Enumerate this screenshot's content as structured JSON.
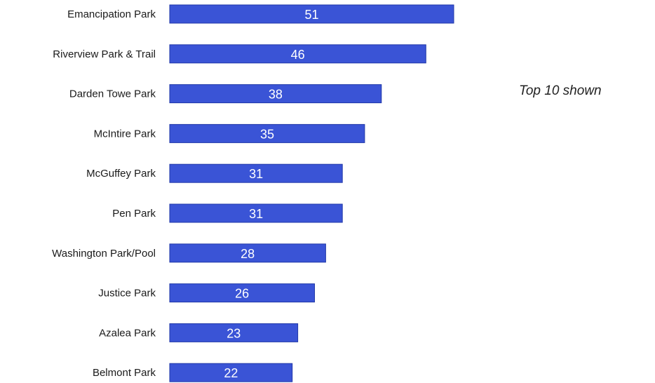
{
  "note": "Top 10 shown",
  "colors": {
    "bar": "#3a54d6",
    "bar_edge": "#2138a8",
    "label_text": "#1a1a1a",
    "value_text": "#ffffff"
  },
  "chart_data": {
    "type": "bar",
    "orientation": "horizontal",
    "title": "",
    "xlabel": "",
    "ylabel": "",
    "xlim": [
      0,
      51
    ],
    "grid": false,
    "legend": "none",
    "categories": [
      "Emancipation Park",
      "Riverview Park & Trail",
      "Darden Towe Park",
      "McIntire Park",
      "McGuffey Park",
      "Pen Park",
      "Washington Park/Pool",
      "Justice Park",
      "Azalea Park",
      "Belmont Park"
    ],
    "values": [
      51,
      46,
      38,
      35,
      31,
      31,
      28,
      26,
      23,
      22
    ],
    "data_labels": [
      "51",
      "46",
      "38",
      "35",
      "31",
      "31",
      "28",
      "26",
      "23",
      "22"
    ]
  }
}
